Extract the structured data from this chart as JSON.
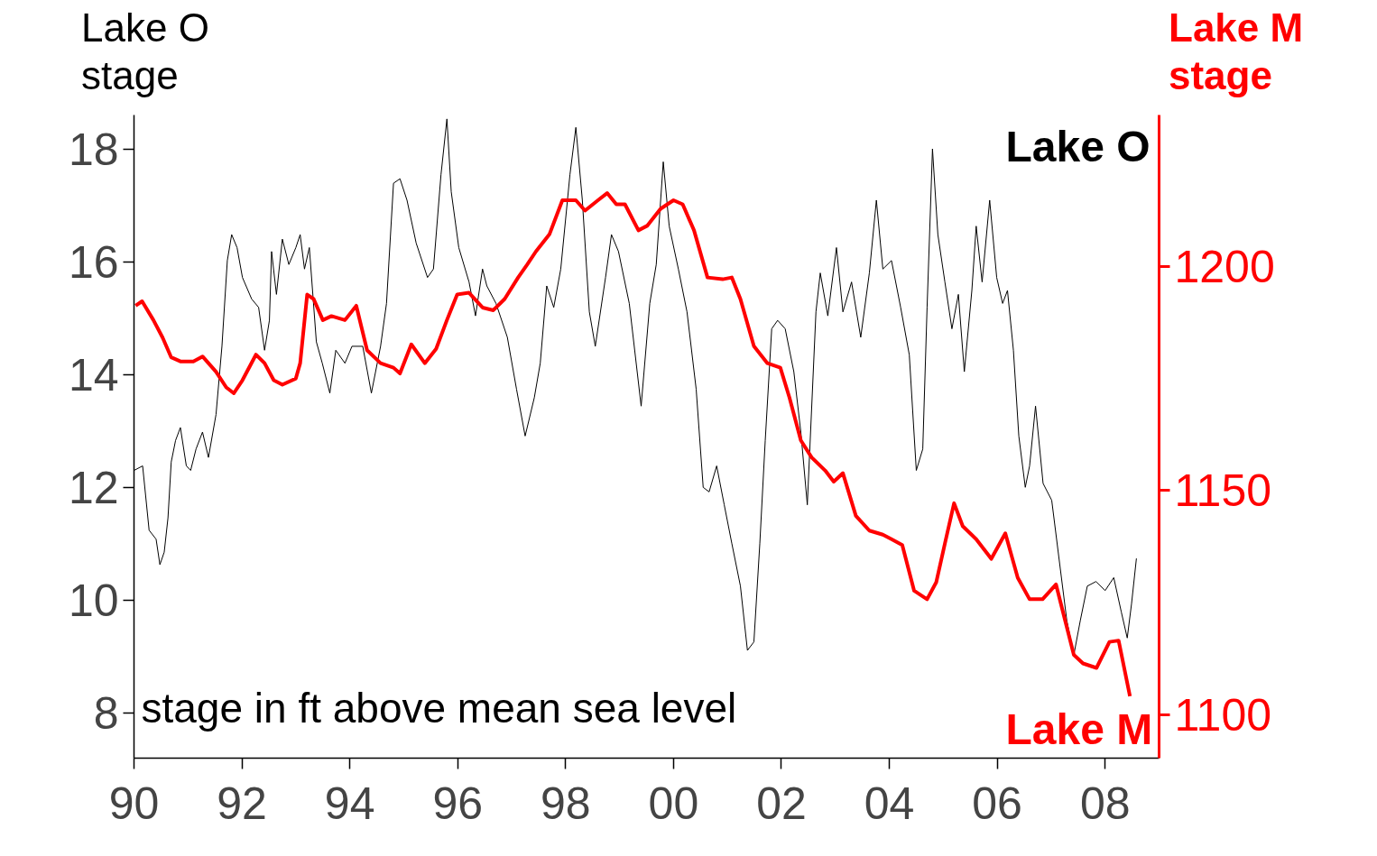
{
  "chart_data": {
    "type": "line",
    "ylabel": "Lake O\nstage",
    "y2label": "Lake M\nstage",
    "annotations": [
      "stage in ft above mean sea level"
    ],
    "xlim": [
      1990,
      2009
    ],
    "ylim": [
      7.2,
      18.6
    ],
    "y2lim": [
      1090.4,
      1233.7
    ],
    "xticks": [
      {
        "value": 1990,
        "label": "90"
      },
      {
        "value": 1992,
        "label": "92"
      },
      {
        "value": 1994,
        "label": "94"
      },
      {
        "value": 1996,
        "label": "96"
      },
      {
        "value": 1998,
        "label": "98"
      },
      {
        "value": 2000,
        "label": "00"
      },
      {
        "value": 2002,
        "label": "02"
      },
      {
        "value": 2004,
        "label": "04"
      },
      {
        "value": 2006,
        "label": "06"
      },
      {
        "value": 2008,
        "label": "08"
      }
    ],
    "yticks": [
      8,
      10,
      12,
      14,
      16,
      18
    ],
    "y2ticks": [
      1100,
      1150,
      1200
    ],
    "grid": false,
    "series": [
      {
        "name": "Lake O",
        "color": "#000000",
        "x": [
          1990.0,
          1990.16,
          1990.28,
          1990.41,
          1990.48,
          1990.56,
          1990.63,
          1990.69,
          1990.77,
          1990.86,
          1990.97,
          1991.05,
          1991.15,
          1991.27,
          1991.38,
          1991.52,
          1991.63,
          1991.73,
          1991.81,
          1991.91,
          1992.01,
          1992.18,
          1992.31,
          1992.42,
          1992.51,
          1992.55,
          1992.64,
          1992.75,
          1992.87,
          1993.0,
          1993.08,
          1993.16,
          1993.25,
          1993.38,
          1993.49,
          1993.63,
          1993.74,
          1993.91,
          1994.04,
          1994.24,
          1994.4,
          1994.57,
          1994.68,
          1994.81,
          1994.93,
          1995.06,
          1995.23,
          1995.44,
          1995.55,
          1995.69,
          1995.8,
          1995.88,
          1996.02,
          1996.21,
          1996.33,
          1996.46,
          1996.54,
          1996.71,
          1996.92,
          1997.09,
          1997.25,
          1997.42,
          1997.53,
          1997.65,
          1997.78,
          1997.91,
          1998.08,
          1998.19,
          1998.31,
          1998.44,
          1998.55,
          1998.74,
          1998.85,
          1998.98,
          1999.18,
          1999.4,
          1999.56,
          1999.68,
          1999.81,
          1999.92,
          2000.09,
          2000.25,
          2000.42,
          2000.55,
          2000.66,
          2000.8,
          2000.94,
          2001.08,
          2001.24,
          2001.37,
          2001.49,
          2001.6,
          2001.7,
          2001.82,
          2001.93,
          2002.07,
          2002.23,
          2002.36,
          2002.48,
          2002.64,
          2002.72,
          2002.86,
          2003.02,
          2003.14,
          2003.3,
          2003.47,
          2003.63,
          2003.76,
          2003.88,
          2004.04,
          2004.21,
          2004.37,
          2004.5,
          2004.62,
          2004.7,
          2004.8,
          2004.9,
          2005.03,
          2005.16,
          2005.28,
          2005.39,
          2005.53,
          2005.61,
          2005.72,
          2005.86,
          2005.99,
          2006.1,
          2006.19,
          2006.3,
          2006.4,
          2006.52,
          2006.6,
          2006.71,
          2006.85,
          2007.01,
          2007.17,
          2007.29,
          2007.42,
          2007.54,
          2007.67,
          2007.83,
          2008.0,
          2008.16,
          2008.3,
          2008.41,
          2008.49,
          2008.58
        ],
        "values": [
          12.3,
          12.38,
          11.24,
          11.08,
          10.63,
          10.85,
          11.46,
          12.45,
          12.83,
          13.06,
          12.38,
          12.3,
          12.68,
          12.98,
          12.53,
          13.29,
          14.5,
          16.02,
          16.48,
          16.25,
          15.72,
          15.34,
          15.19,
          14.43,
          14.96,
          16.18,
          15.42,
          16.4,
          15.95,
          16.25,
          16.48,
          15.87,
          16.25,
          14.58,
          14.2,
          13.67,
          14.43,
          14.2,
          14.5,
          14.5,
          13.67,
          14.5,
          15.26,
          17.39,
          17.47,
          17.09,
          16.33,
          15.72,
          15.87,
          17.54,
          18.53,
          17.24,
          16.25,
          15.64,
          15.04,
          15.87,
          15.57,
          15.26,
          14.66,
          13.74,
          12.91,
          13.59,
          14.2,
          15.57,
          15.19,
          15.87,
          17.54,
          18.38,
          17.09,
          15.11,
          14.5,
          15.72,
          16.48,
          16.18,
          15.26,
          13.44,
          15.26,
          15.95,
          17.77,
          16.63,
          15.87,
          15.11,
          13.74,
          12.0,
          11.92,
          12.38,
          11.69,
          11.01,
          10.25,
          9.11,
          9.26,
          11.01,
          12.83,
          14.81,
          14.96,
          14.81,
          14.05,
          12.98,
          11.69,
          15.11,
          15.8,
          15.04,
          16.25,
          15.11,
          15.64,
          14.66,
          15.8,
          17.09,
          15.87,
          16.02,
          15.19,
          14.35,
          12.3,
          12.68,
          15.19,
          18.0,
          16.48,
          15.64,
          14.81,
          15.42,
          14.05,
          15.49,
          16.63,
          15.64,
          17.09,
          15.72,
          15.26,
          15.49,
          14.43,
          12.91,
          12.0,
          12.38,
          13.44,
          12.07,
          11.77,
          10.55,
          9.64,
          9.03,
          9.64,
          10.25,
          10.33,
          10.17,
          10.4,
          9.79,
          9.33,
          9.94,
          10.74
        ]
      },
      {
        "name": "Lake M",
        "color": "#ff0000",
        "axis": "y2",
        "x": [
          1990.03,
          1990.15,
          1990.36,
          1990.53,
          1990.69,
          1990.86,
          1991.1,
          1991.27,
          1991.52,
          1991.71,
          1991.85,
          1992.01,
          1992.26,
          1992.42,
          1992.59,
          1992.75,
          1993.0,
          1993.08,
          1993.21,
          1993.33,
          1993.5,
          1993.66,
          1993.91,
          1994.12,
          1994.32,
          1994.57,
          1994.81,
          1994.93,
          1995.14,
          1995.39,
          1995.6,
          1995.8,
          1995.99,
          1996.21,
          1996.46,
          1996.66,
          1996.87,
          1997.12,
          1997.29,
          1997.45,
          1997.7,
          1997.94,
          1998.19,
          1998.36,
          1998.6,
          1998.77,
          1998.94,
          1999.1,
          1999.35,
          1999.51,
          1999.76,
          2000.0,
          2000.17,
          2000.38,
          2000.63,
          2000.91,
          2001.08,
          2001.24,
          2001.49,
          2001.74,
          2001.98,
          2002.15,
          2002.36,
          2002.56,
          2002.81,
          2002.97,
          2003.14,
          2003.38,
          2003.63,
          2003.88,
          2004.04,
          2004.24,
          2004.46,
          2004.7,
          2004.87,
          2005.03,
          2005.2,
          2005.36,
          2005.61,
          2005.89,
          2006.15,
          2006.38,
          2006.6,
          2006.84,
          2007.09,
          2007.26,
          2007.42,
          2007.59,
          2007.84,
          2008.08,
          2008.25,
          2008.46
        ],
        "values": [
          1191.2,
          1192.2,
          1188,
          1184.1,
          1179.7,
          1178.8,
          1178.8,
          1179.9,
          1176.5,
          1173,
          1171.7,
          1174.6,
          1180.3,
          1178.4,
          1174.6,
          1173.6,
          1175,
          1178.4,
          1193.7,
          1192.7,
          1188,
          1188.9,
          1188,
          1191.2,
          1181.3,
          1178.4,
          1177.4,
          1176.1,
          1182.6,
          1178.4,
          1181.6,
          1188,
          1193.7,
          1194.1,
          1190.8,
          1190.2,
          1192.7,
          1197.5,
          1200.4,
          1203.3,
          1207.1,
          1214.7,
          1214.7,
          1212.4,
          1214.7,
          1216.3,
          1213.8,
          1213.8,
          1208,
          1209,
          1212.8,
          1214.7,
          1213.8,
          1208,
          1197.5,
          1197.1,
          1197.5,
          1192.7,
          1182.2,
          1178.4,
          1177.4,
          1170.7,
          1161.2,
          1157.4,
          1154.5,
          1152,
          1153.9,
          1144.4,
          1141.1,
          1140.2,
          1139.2,
          1137.9,
          1127.7,
          1125.8,
          1129.6,
          1138.2,
          1147.2,
          1142.1,
          1139.2,
          1134.8,
          1140.5,
          1130.6,
          1125.8,
          1125.8,
          1129.1,
          1121,
          1113.4,
          1111.5,
          1110.5,
          1116.3,
          1116.6,
          1104.2
        ]
      }
    ]
  }
}
